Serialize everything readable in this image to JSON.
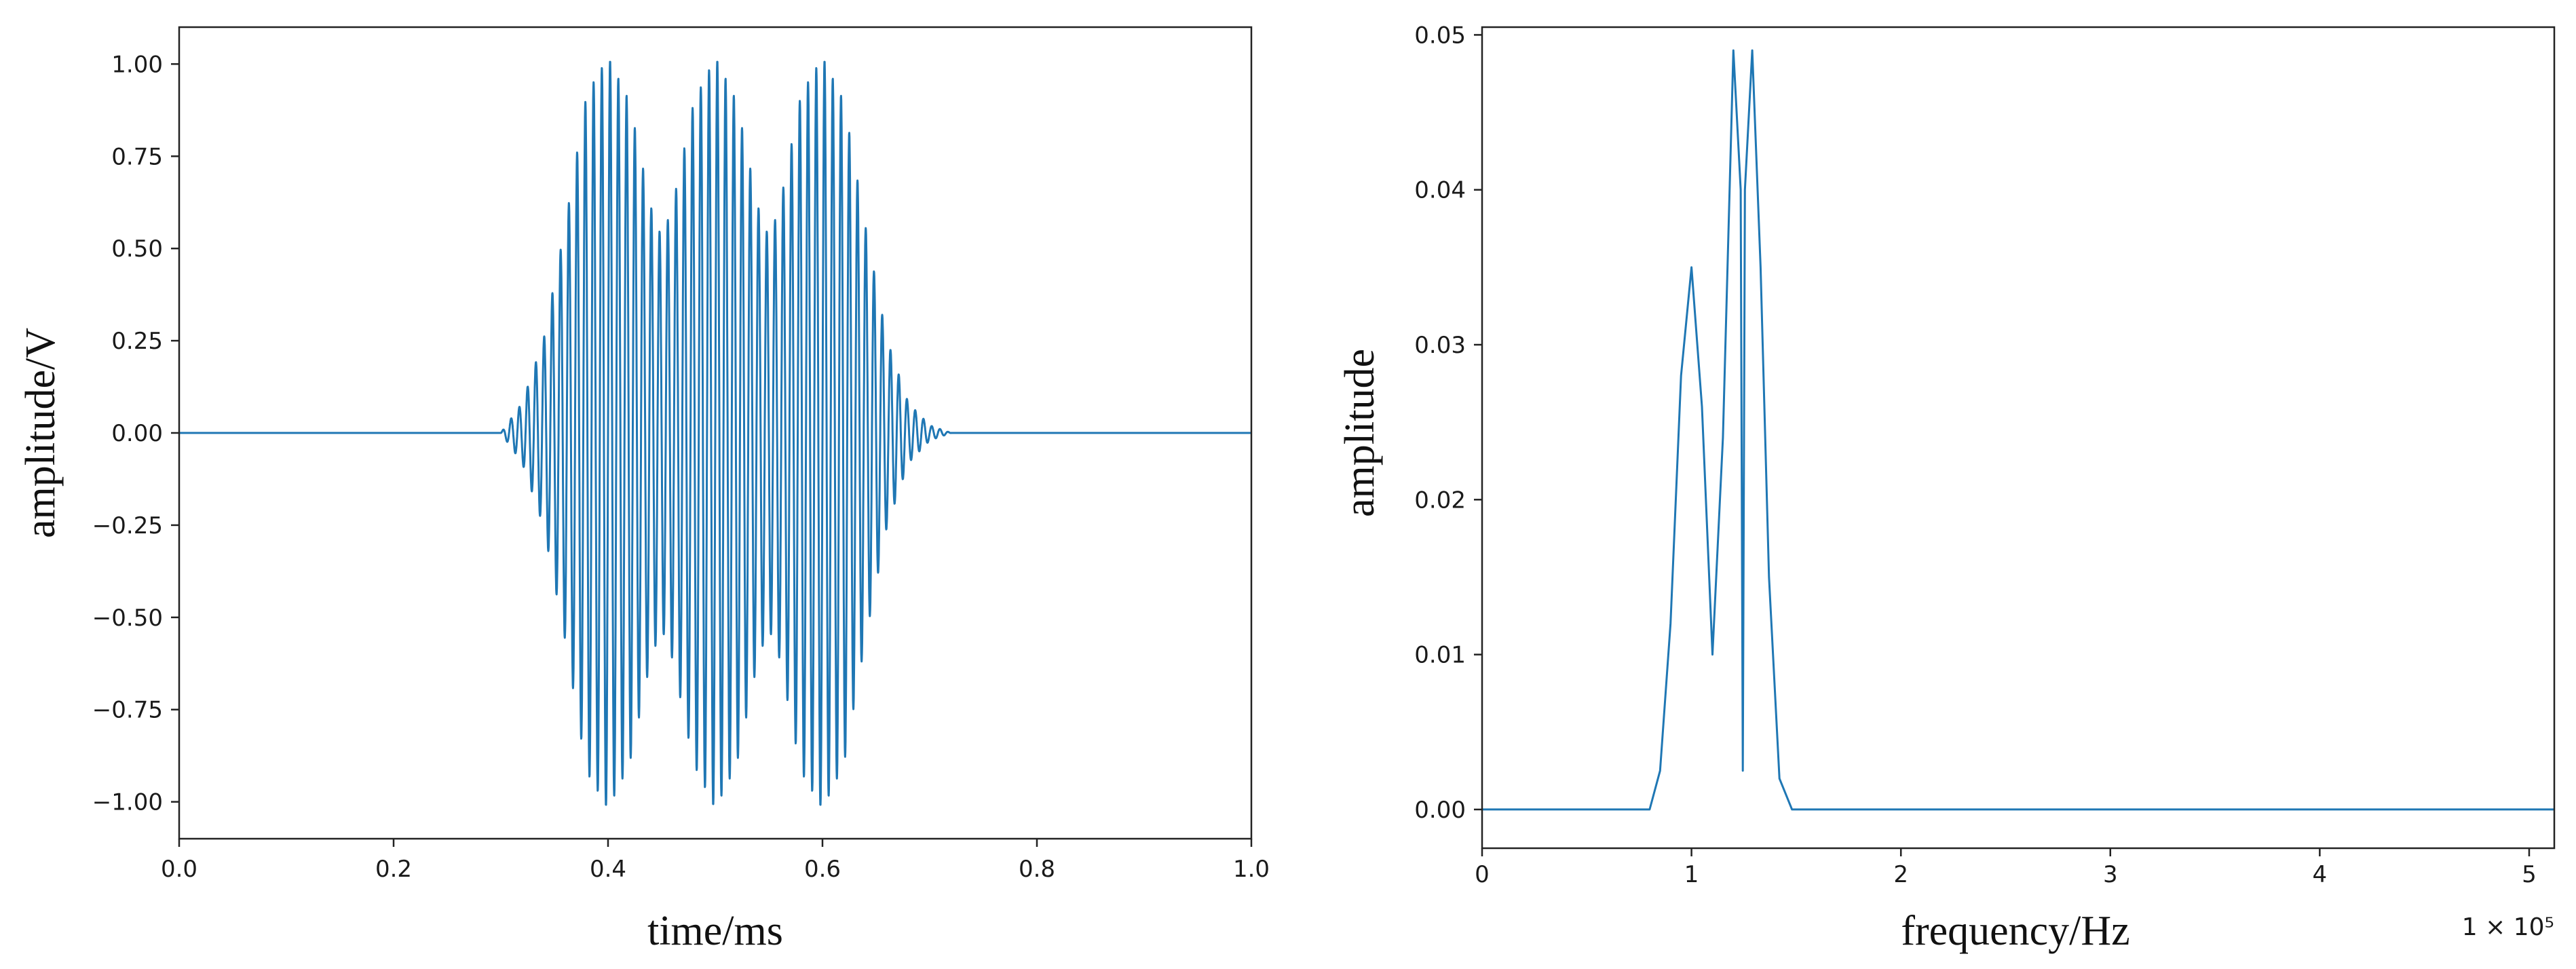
{
  "chart_data": [
    {
      "type": "line",
      "title": "",
      "xlabel": "time/ms",
      "ylabel": "amplitude/V",
      "xlim": [
        0.0,
        1.0
      ],
      "ylim": [
        -1.1,
        1.1
      ],
      "x_ticks": [
        "0.0",
        "0.2",
        "0.4",
        "0.6",
        "0.8",
        "1.0"
      ],
      "y_ticks": [
        "1.00",
        "0.75",
        "0.50",
        "0.25",
        "0.00",
        "−0.25",
        "−0.50",
        "−0.75",
        "−1.00"
      ],
      "grid": false,
      "color": "#1f77b4",
      "series": [
        {
          "x": [
            0.0,
            0.3,
            0.32,
            0.34,
            0.36,
            0.38,
            0.4,
            0.42,
            0.44,
            0.45,
            0.46,
            0.48,
            0.5,
            0.52,
            0.54,
            0.55,
            0.56,
            0.58,
            0.6,
            0.62,
            0.64,
            0.66,
            0.68,
            0.7,
            0.72,
            1.0
          ],
          "envelope": [
            0.0,
            0.0,
            0.08,
            0.25,
            0.55,
            0.9,
            1.0,
            0.88,
            0.6,
            0.52,
            0.6,
            0.88,
            1.0,
            0.88,
            0.6,
            0.52,
            0.6,
            0.9,
            1.0,
            0.88,
            0.55,
            0.25,
            0.08,
            0.02,
            0.0,
            0.0
          ],
          "description": "oscillating burst, three wave packets centered at 0.40, 0.50 and 0.60 ms, peak amplitude about ±1.02 V"
        }
      ]
    },
    {
      "type": "line",
      "title": "",
      "xlabel": "frequency/Hz",
      "ylabel": "amplitude",
      "x_offset_label": "1 × 10⁵",
      "xlim": [
        0,
        5.12
      ],
      "ylim": [
        -0.0025,
        0.0505
      ],
      "x_ticks": [
        "0",
        "1",
        "2",
        "3",
        "4",
        "5"
      ],
      "y_ticks": [
        "0.05",
        "0.04",
        "0.03",
        "0.02",
        "0.01",
        "0.00"
      ],
      "grid": false,
      "color": "#1f77b4",
      "series": [
        {
          "x": [
            0.0,
            0.8,
            0.85,
            0.9,
            0.95,
            1.0,
            1.05,
            1.1,
            1.15,
            1.2,
            1.235,
            1.245,
            1.255,
            1.29,
            1.33,
            1.37,
            1.42,
            1.48,
            5.12
          ],
          "y": [
            0.0,
            0.0,
            0.0025,
            0.012,
            0.028,
            0.035,
            0.026,
            0.01,
            0.024,
            0.049,
            0.04,
            0.0025,
            0.04,
            0.049,
            0.035,
            0.015,
            0.002,
            0.0,
            0.0
          ]
        }
      ]
    }
  ]
}
